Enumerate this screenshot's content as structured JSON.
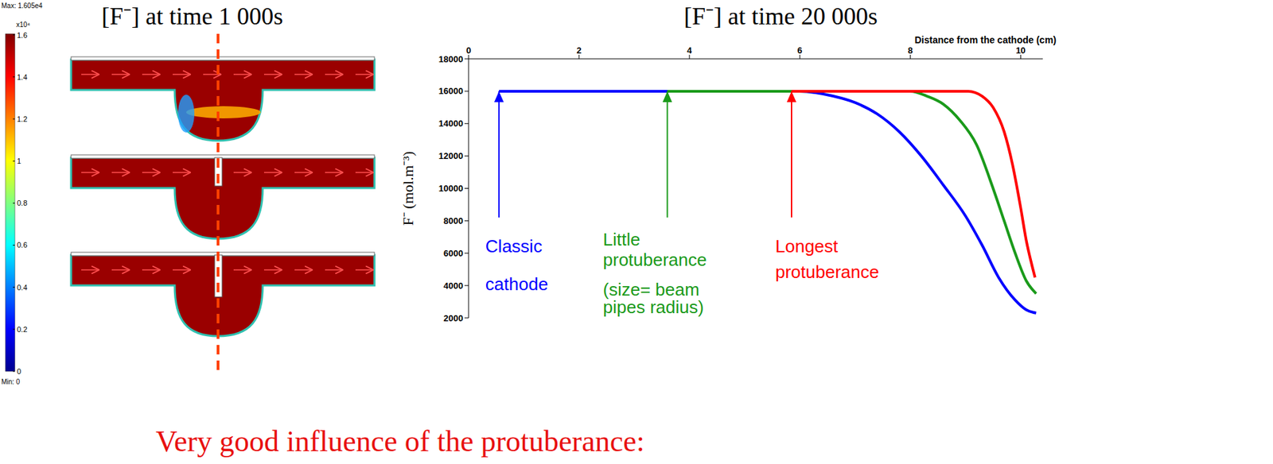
{
  "chart_data": [
    {
      "type": "contour",
      "title": "[F⁻] at time 1 000s",
      "colorbar": {
        "lim": [
          0,
          1.605
        ],
        "ticks": [
          0,
          0.2,
          0.4,
          0.6,
          0.8,
          1,
          1.2,
          1.4,
          1.6
        ],
        "multiplier_label": "x10⁴",
        "max_label": "Max: 1.605e4",
        "min_label": "Min: 0"
      }
    },
    {
      "type": "line",
      "title": "[F⁻] at time 20 000s",
      "x_label": "Distance from the cathode (cm)",
      "y_label": "F⁻ (mol.m⁻³)",
      "xlim": [
        0,
        10.4
      ],
      "xticks": [
        0,
        2,
        4,
        6,
        8,
        10
      ],
      "ylim": [
        2000,
        18000
      ],
      "yticks": [
        2000,
        4000,
        6000,
        8000,
        10000,
        12000,
        14000,
        16000,
        18000
      ],
      "grid": false,
      "series": [
        {
          "color": "#0000ff",
          "annotation": [
            "Classic",
            "cathode"
          ],
          "arrow_y": [
            8200,
            16000
          ],
          "x": [
            0.55,
            6.0,
            6.3,
            6.6,
            7.0,
            7.4,
            7.8,
            8.2,
            8.6,
            9.0,
            9.3,
            9.6,
            9.9,
            10.1,
            10.28
          ],
          "values": [
            16000,
            16000,
            15900,
            15700,
            15300,
            14600,
            13500,
            12000,
            10200,
            8300,
            6500,
            4500,
            3100,
            2500,
            2300
          ]
        },
        {
          "color": "#1a9a1a",
          "annotation": [
            "Little",
            "protuberance",
            "(size= beam",
            "pipes radius)"
          ],
          "arrow_y": [
            8200,
            16000
          ],
          "x": [
            3.6,
            8.0,
            8.3,
            8.6,
            8.9,
            9.2,
            9.5,
            9.7,
            9.9,
            10.1,
            10.28
          ],
          "values": [
            16000,
            16000,
            15700,
            15200,
            14200,
            12700,
            10000,
            8000,
            6000,
            4300,
            3500
          ]
        },
        {
          "color": "#ff0000",
          "annotation": [
            "Longest",
            "protuberance"
          ],
          "arrow_y": [
            8200,
            16000
          ],
          "x": [
            5.85,
            9.05,
            9.3,
            9.5,
            9.7,
            9.85,
            10.0,
            10.1,
            10.2,
            10.26
          ],
          "values": [
            16000,
            16000,
            15700,
            15000,
            13500,
            11500,
            8800,
            6800,
            5300,
            4500
          ]
        }
      ]
    }
  ],
  "footer": "Very good influence of the protuberance:"
}
